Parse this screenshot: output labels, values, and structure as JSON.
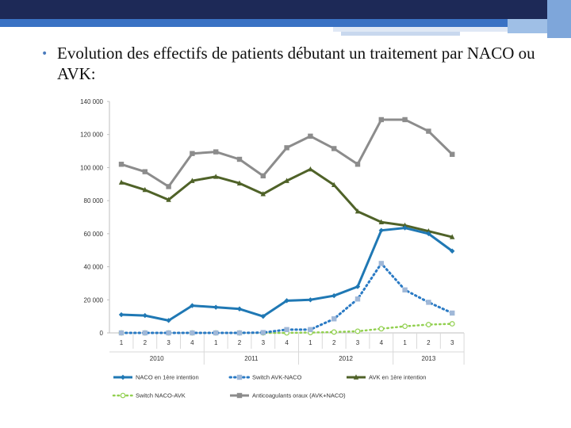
{
  "slide": {
    "bullet_text": "Evolution des effectifs de patients débutant un traitement par NACO ou AVK:"
  },
  "colors": {
    "header": "#1d2957",
    "header_stripe": "#3a72c4",
    "bullet": "#4a7bbd"
  },
  "chart_data": {
    "type": "line",
    "title": "",
    "xlabel": "",
    "ylabel": "",
    "ylim": [
      0,
      140000
    ],
    "y_ticks": [
      0,
      20000,
      40000,
      60000,
      80000,
      100000,
      120000,
      140000
    ],
    "y_tick_labels": [
      "0",
      "20 000",
      "40 000",
      "60 000",
      "80 000",
      "100 000",
      "120 000",
      "140 000"
    ],
    "categories": [
      "1",
      "2",
      "3",
      "4",
      "1",
      "2",
      "3",
      "4",
      "1",
      "2",
      "3",
      "4",
      "1",
      "2",
      "3"
    ],
    "year_labels": [
      {
        "label": "2010",
        "start": 0,
        "end": 3
      },
      {
        "label": "2011",
        "start": 4,
        "end": 7
      },
      {
        "label": "2012",
        "start": 8,
        "end": 11
      },
      {
        "label": "2013",
        "start": 12,
        "end": 14
      }
    ],
    "grid": false,
    "series": [
      {
        "name": "NACO en 1ère intention",
        "color": "#1f78b4",
        "style": "solid",
        "marker": "diamond",
        "values": [
          11000,
          10500,
          7500,
          16500,
          15500,
          14500,
          10000,
          19500,
          20000,
          22500,
          28000,
          62000,
          63500,
          60000,
          49500
        ]
      },
      {
        "name": "Switch AVK-NACO",
        "color": "#2a7ac4",
        "style": "dotted",
        "marker": "square",
        "values": [
          0,
          0,
          0,
          0,
          0,
          0,
          200,
          2000,
          2000,
          8500,
          20500,
          42000,
          26000,
          18500,
          12000
        ]
      },
      {
        "name": "AVK en 1ère intention",
        "color": "#4f6228",
        "style": "solid",
        "marker": "triangle",
        "values": [
          91000,
          86500,
          80500,
          92000,
          94500,
          90500,
          84000,
          92000,
          99000,
          89500,
          73500,
          67000,
          65000,
          61500,
          58000
        ]
      },
      {
        "name": "Switch NACO-AVK",
        "color": "#92d050",
        "style": "dotted",
        "marker": "circle",
        "values": [
          0,
          0,
          0,
          0,
          0,
          0,
          0,
          0,
          200,
          500,
          1000,
          2500,
          4000,
          5000,
          5500
        ]
      },
      {
        "name": "Anticoagulants oraux (AVK+NACO)",
        "color": "#8c8c8c",
        "style": "solid",
        "marker": "square",
        "values": [
          102000,
          97500,
          88500,
          108500,
          109500,
          105000,
          95000,
          112000,
          119000,
          111500,
          102000,
          129000,
          129000,
          122000,
          108000
        ]
      }
    ],
    "legend": {
      "placement": "bottom",
      "entries": [
        "NACO en 1ère intention",
        "Switch AVK-NACO",
        "AVK en 1ère intention",
        "Switch NACO-AVK",
        "Anticoagulants oraux (AVK+NACO)"
      ]
    }
  }
}
